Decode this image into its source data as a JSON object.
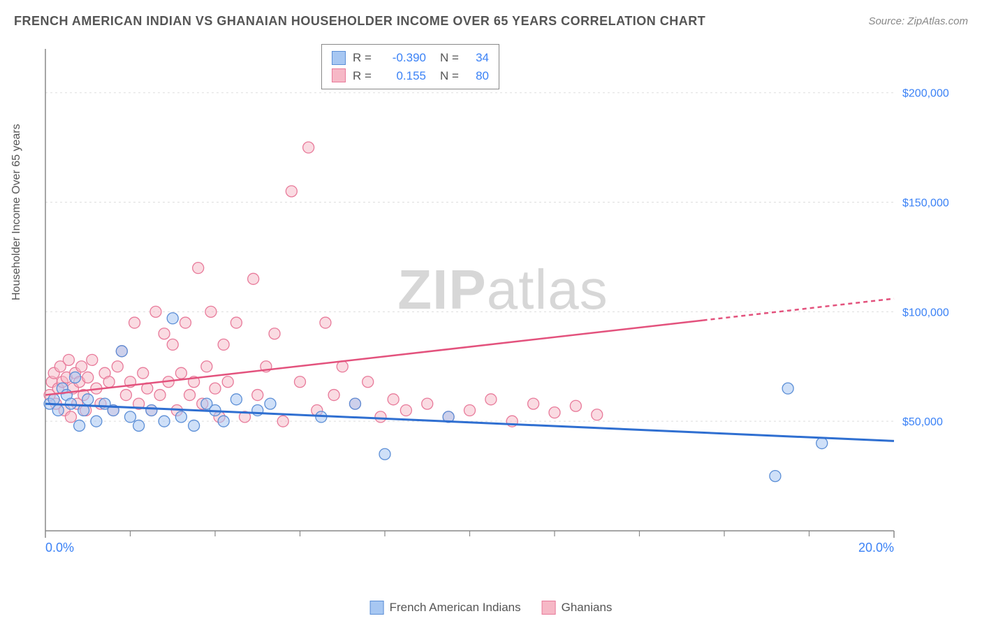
{
  "header": {
    "title": "FRENCH AMERICAN INDIAN VS GHANAIAN HOUSEHOLDER INCOME OVER 65 YEARS CORRELATION CHART",
    "source": "Source: ZipAtlas.com"
  },
  "watermark": {
    "bold": "ZIP",
    "light": "atlas"
  },
  "chart": {
    "type": "scatter",
    "y_axis_label": "Householder Income Over 65 years",
    "xlim": [
      0,
      20
    ],
    "ylim": [
      0,
      220000
    ],
    "x_ticks": [
      0,
      20
    ],
    "x_tick_labels": [
      "0.0%",
      "20.0%"
    ],
    "x_minor_ticks": [
      2,
      4,
      6,
      8,
      10,
      12,
      14,
      16,
      18
    ],
    "y_ticks": [
      50000,
      100000,
      150000,
      200000
    ],
    "y_tick_labels": [
      "$50,000",
      "$100,000",
      "$150,000",
      "$200,000"
    ],
    "background_color": "#ffffff",
    "grid_color": "#dddddd",
    "axis_color": "#888888",
    "tick_label_color": "#3b82f6",
    "series": [
      {
        "name": "French American Indians",
        "color_fill": "#a7c7f2",
        "color_stroke": "#5b8ed6",
        "marker_radius": 8,
        "fill_opacity": 0.55,
        "correlation_R": "-0.390",
        "N": "34",
        "trend": {
          "x1": 0,
          "y1": 58000,
          "x2": 20,
          "y2": 41000,
          "dash_from_x": 20,
          "color": "#2f6fd1",
          "width": 3
        },
        "points": [
          [
            0.1,
            58000
          ],
          [
            0.2,
            60000
          ],
          [
            0.3,
            55000
          ],
          [
            0.4,
            65000
          ],
          [
            0.5,
            62000
          ],
          [
            0.6,
            58000
          ],
          [
            0.7,
            70000
          ],
          [
            0.8,
            48000
          ],
          [
            0.9,
            55000
          ],
          [
            1.0,
            60000
          ],
          [
            1.2,
            50000
          ],
          [
            1.4,
            58000
          ],
          [
            1.6,
            55000
          ],
          [
            1.8,
            82000
          ],
          [
            2.0,
            52000
          ],
          [
            2.2,
            48000
          ],
          [
            2.5,
            55000
          ],
          [
            2.8,
            50000
          ],
          [
            3.0,
            97000
          ],
          [
            3.2,
            52000
          ],
          [
            3.5,
            48000
          ],
          [
            3.8,
            58000
          ],
          [
            4.0,
            55000
          ],
          [
            4.2,
            50000
          ],
          [
            4.5,
            60000
          ],
          [
            5.0,
            55000
          ],
          [
            5.3,
            58000
          ],
          [
            6.5,
            52000
          ],
          [
            7.3,
            58000
          ],
          [
            8.0,
            35000
          ],
          [
            9.5,
            52000
          ],
          [
            17.5,
            65000
          ],
          [
            18.3,
            40000
          ],
          [
            17.2,
            25000
          ]
        ]
      },
      {
        "name": "Ghanians",
        "color_fill": "#f6b8c6",
        "color_stroke": "#e87a9a",
        "marker_radius": 8,
        "fill_opacity": 0.5,
        "correlation_R": "0.155",
        "N": "80",
        "trend": {
          "x1": 0,
          "y1": 62000,
          "x2": 20,
          "y2": 106000,
          "dash_from_x": 15.5,
          "color": "#e3527d",
          "width": 2.5
        },
        "points": [
          [
            0.1,
            62000
          ],
          [
            0.15,
            68000
          ],
          [
            0.2,
            72000
          ],
          [
            0.25,
            58000
          ],
          [
            0.3,
            65000
          ],
          [
            0.35,
            75000
          ],
          [
            0.4,
            68000
          ],
          [
            0.45,
            55000
          ],
          [
            0.5,
            70000
          ],
          [
            0.55,
            78000
          ],
          [
            0.6,
            52000
          ],
          [
            0.65,
            65000
          ],
          [
            0.7,
            72000
          ],
          [
            0.75,
            58000
          ],
          [
            0.8,
            68000
          ],
          [
            0.85,
            75000
          ],
          [
            0.9,
            62000
          ],
          [
            0.95,
            55000
          ],
          [
            1.0,
            70000
          ],
          [
            1.1,
            78000
          ],
          [
            1.2,
            65000
          ],
          [
            1.3,
            58000
          ],
          [
            1.4,
            72000
          ],
          [
            1.5,
            68000
          ],
          [
            1.6,
            55000
          ],
          [
            1.7,
            75000
          ],
          [
            1.8,
            82000
          ],
          [
            1.9,
            62000
          ],
          [
            2.0,
            68000
          ],
          [
            2.1,
            95000
          ],
          [
            2.2,
            58000
          ],
          [
            2.3,
            72000
          ],
          [
            2.4,
            65000
          ],
          [
            2.5,
            55000
          ],
          [
            2.6,
            100000
          ],
          [
            2.7,
            62000
          ],
          [
            2.8,
            90000
          ],
          [
            2.9,
            68000
          ],
          [
            3.0,
            85000
          ],
          [
            3.1,
            55000
          ],
          [
            3.2,
            72000
          ],
          [
            3.3,
            95000
          ],
          [
            3.4,
            62000
          ],
          [
            3.5,
            68000
          ],
          [
            3.6,
            120000
          ],
          [
            3.7,
            58000
          ],
          [
            3.8,
            75000
          ],
          [
            3.9,
            100000
          ],
          [
            4.0,
            65000
          ],
          [
            4.1,
            52000
          ],
          [
            4.2,
            85000
          ],
          [
            4.3,
            68000
          ],
          [
            4.5,
            95000
          ],
          [
            4.7,
            52000
          ],
          [
            4.9,
            115000
          ],
          [
            5.0,
            62000
          ],
          [
            5.2,
            75000
          ],
          [
            5.4,
            90000
          ],
          [
            5.6,
            50000
          ],
          [
            5.8,
            155000
          ],
          [
            6.0,
            68000
          ],
          [
            6.2,
            175000
          ],
          [
            6.4,
            55000
          ],
          [
            6.6,
            95000
          ],
          [
            6.8,
            62000
          ],
          [
            7.0,
            75000
          ],
          [
            7.3,
            58000
          ],
          [
            7.6,
            68000
          ],
          [
            7.9,
            52000
          ],
          [
            8.2,
            60000
          ],
          [
            8.5,
            55000
          ],
          [
            9.0,
            58000
          ],
          [
            9.5,
            52000
          ],
          [
            10.0,
            55000
          ],
          [
            10.5,
            60000
          ],
          [
            11.0,
            50000
          ],
          [
            11.5,
            58000
          ],
          [
            12.0,
            54000
          ],
          [
            12.5,
            57000
          ],
          [
            13.0,
            53000
          ]
        ]
      }
    ],
    "legend_bottom": [
      {
        "label": "French American Indians",
        "fill": "#a7c7f2",
        "stroke": "#5b8ed6"
      },
      {
        "label": "Ghanians",
        "fill": "#f6b8c6",
        "stroke": "#e87a9a"
      }
    ]
  }
}
